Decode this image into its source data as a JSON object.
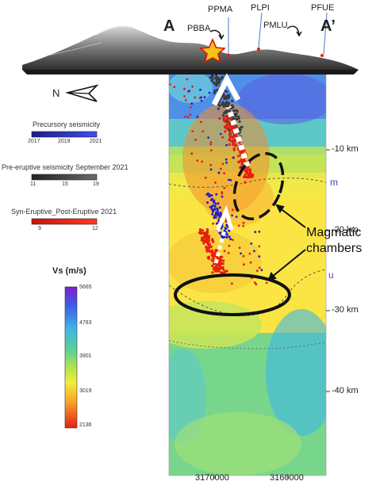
{
  "section": {
    "start_label": "A",
    "end_label": "A’",
    "north_label": "N"
  },
  "stations": {
    "ppma": "PPMA",
    "pbba": "PBBA",
    "plpi": "PLPI",
    "pmlu": "PMLU",
    "pfue": "PFUE"
  },
  "legends": {
    "precursory": {
      "title": "Precursory seismicity",
      "ticks": [
        "2017",
        "2019",
        "2021"
      ],
      "color": "#2020c8"
    },
    "pre_eruptive": {
      "title": "Pre-eruptive seismicity September 2021",
      "ticks": [
        "11",
        "15",
        "19"
      ],
      "color": "#3a3a3a"
    },
    "syn_eruptive": {
      "title": "Syn-Eruptive_Post-Eruptive 2021",
      "ticks": [
        "9",
        "12"
      ],
      "color": "#e81e10"
    }
  },
  "vs_scale": {
    "title": "Vs (m/s)",
    "ticks": [
      "5665",
      "4783",
      "3901",
      "3019",
      "2136"
    ]
  },
  "depth_axis": {
    "ticks": [
      "-10 km",
      "-20 km",
      "-30 km",
      "-40 km"
    ]
  },
  "layers": {
    "m": "m",
    "u": "u"
  },
  "easting_axis": {
    "ticks": [
      "3170000",
      "3160000"
    ]
  },
  "annotation": {
    "line1": "Magmatic",
    "line2": "chambers"
  }
}
